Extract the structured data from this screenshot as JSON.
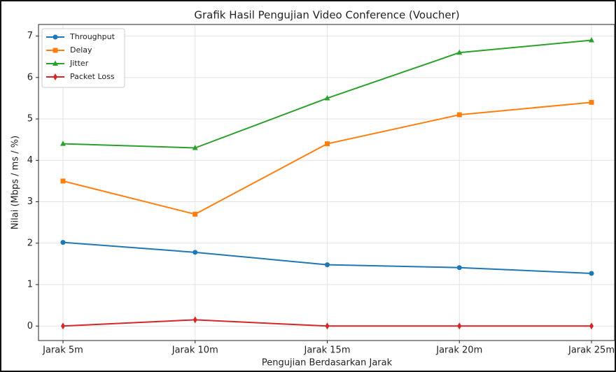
{
  "chart_data": {
    "type": "line",
    "title": "Grafik Hasil Pengujian Video Conference (Voucher)",
    "x_label": "Pengujian Berdasarkan Jarak",
    "y_label": "Nilai (Mbps / ms / %)",
    "categories": [
      "Jarak 5m",
      "Jarak 10m",
      "Jarak 15m",
      "Jarak 20m",
      "Jarak 25m"
    ],
    "series": [
      {
        "name": "Throughput",
        "color": "#1f77b4",
        "marker": "circle",
        "values": [
          2.02,
          1.78,
          1.48,
          1.41,
          1.27
        ]
      },
      {
        "name": "Delay",
        "color": "#ff7f0e",
        "marker": "square",
        "values": [
          3.5,
          2.7,
          4.4,
          5.1,
          5.4
        ]
      },
      {
        "name": "Jitter",
        "color": "#2ca02c",
        "marker": "triangle",
        "values": [
          4.4,
          4.3,
          5.5,
          6.6,
          6.9
        ]
      },
      {
        "name": "Packet Loss",
        "color": "#d62728",
        "marker": "diamond",
        "values": [
          0,
          0.15,
          0,
          0,
          0
        ]
      }
    ],
    "ylim": [
      -0.35,
      7.28
    ],
    "yticks": [
      0,
      1,
      2,
      3,
      4,
      5,
      6,
      7
    ],
    "grid": true,
    "legend": "upper left"
  }
}
